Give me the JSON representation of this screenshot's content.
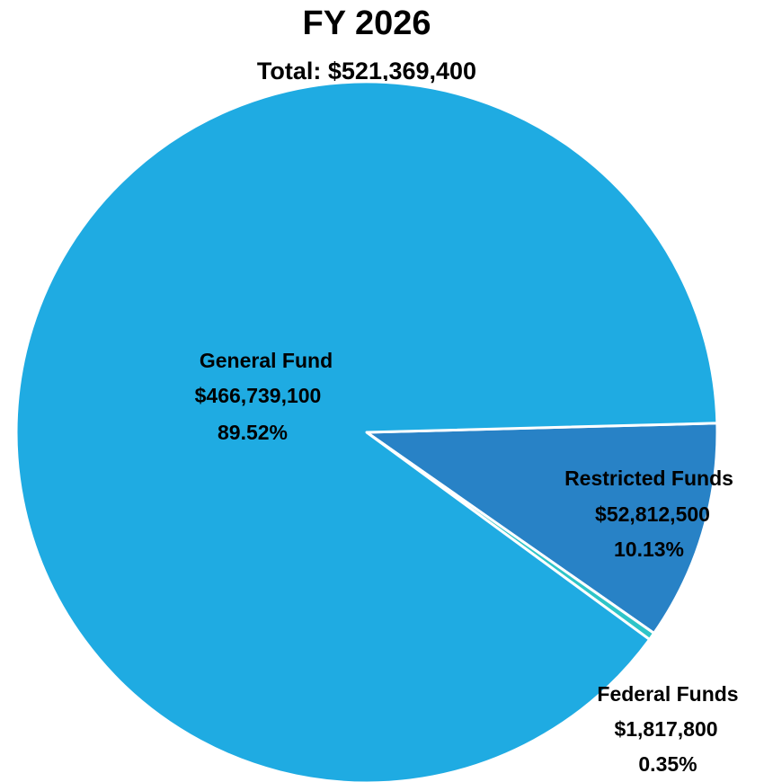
{
  "chart_data": {
    "type": "pie",
    "title": "FY 2026",
    "subtitle": "Total: $521,369,400",
    "slices": [
      {
        "label": "General Fund",
        "value": 466739100,
        "value_text": "$466,739,100",
        "percent_text": "89.52%",
        "color": "#1FABE2"
      },
      {
        "label": "Federal Funds",
        "value": 1817800,
        "value_text": "$1,817,800",
        "percent_text": "0.35%",
        "color": "#2EC4C8"
      },
      {
        "label": "Restricted Funds",
        "value": 52812500,
        "value_text": "$52,812,500",
        "percent_text": "10.13%",
        "color": "#2882C6"
      }
    ],
    "legend": "none",
    "border_color": "#ffffff"
  }
}
